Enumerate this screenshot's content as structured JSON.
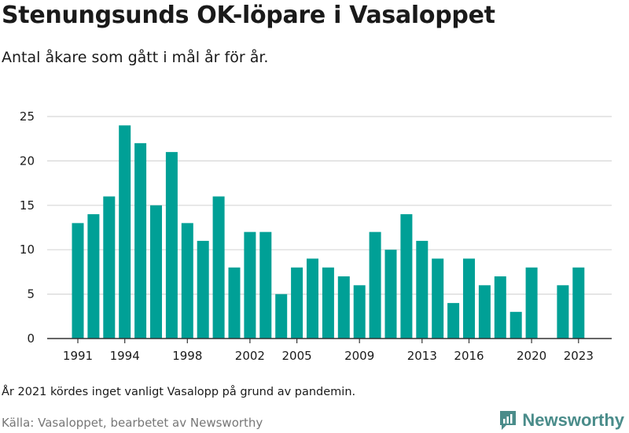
{
  "header": {
    "title": "Stenungsunds OK-löpare i Vasaloppet",
    "subtitle": "Antal åkare som gått i mål år för år."
  },
  "footer": {
    "note": "År 2021 kördes inget vanligt Vasalopp på grund av pandemin.",
    "source": "Källa: Vasaloppet, bearbetet av Newsworthy",
    "brand": "Newsworthy"
  },
  "colors": {
    "bar": "#00a096",
    "grid": "#d8d8d8",
    "axis": "#333333",
    "brand": "#4a8c8a"
  },
  "chart_data": {
    "type": "bar",
    "title": "Stenungsunds OK-löpare i Vasaloppet",
    "subtitle": "Antal åkare som gått i mål år för år.",
    "x": [
      1991,
      1992,
      1993,
      1994,
      1995,
      1996,
      1997,
      1998,
      1999,
      2000,
      2001,
      2002,
      2003,
      2004,
      2005,
      2006,
      2007,
      2008,
      2009,
      2010,
      2011,
      2012,
      2013,
      2014,
      2015,
      2016,
      2017,
      2018,
      2019,
      2020,
      2021,
      2022,
      2023
    ],
    "values": [
      13,
      14,
      16,
      24,
      22,
      15,
      21,
      13,
      11,
      16,
      8,
      12,
      12,
      5,
      8,
      9,
      8,
      7,
      6,
      12,
      10,
      14,
      11,
      9,
      4,
      9,
      6,
      7,
      3,
      8,
      null,
      6,
      8
    ],
    "x_ticks": [
      1991,
      1994,
      1998,
      2002,
      2005,
      2009,
      2013,
      2016,
      2020,
      2023
    ],
    "y_ticks": [
      0,
      5,
      10,
      15,
      20,
      25
    ],
    "ylim": [
      0,
      25
    ],
    "grid": true,
    "legend": "none"
  }
}
